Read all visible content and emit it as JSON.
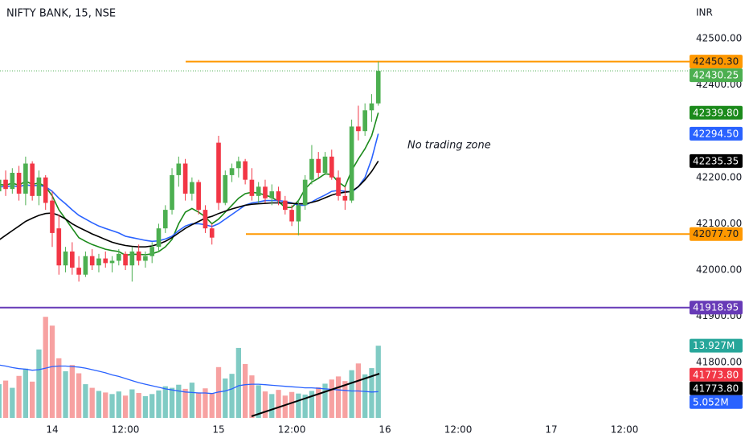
{
  "chart_data": {
    "type": "candlestick",
    "title": "NIFTY BANK, 15, NSE",
    "currency": "INR",
    "annotation": "No trading zone",
    "x": [
      -8,
      -7,
      -6,
      -5,
      -4,
      -3,
      -2,
      -1,
      0,
      1,
      2,
      3,
      4,
      5,
      6,
      7,
      8,
      9,
      10,
      11,
      12,
      13,
      14,
      15,
      16,
      17,
      18,
      19,
      20,
      21,
      22,
      23,
      24,
      25,
      26,
      27,
      28,
      29,
      30,
      31,
      32,
      33,
      34,
      35,
      36,
      37,
      38,
      39,
      40,
      41,
      42,
      43,
      44,
      45,
      46,
      47,
      48,
      49
    ],
    "open": [
      42170,
      42195,
      42175,
      42210,
      42165,
      42230,
      42160,
      42200,
      42150,
      42090,
      42010,
      42040,
      42005,
      41990,
      42030,
      42010,
      42025,
      42015,
      42020,
      42035,
      42010,
      42040,
      42020,
      42030,
      42050,
      42090,
      42130,
      42205,
      42230,
      42165,
      42190,
      42130,
      42090,
      42275,
      42145,
      42205,
      42220,
      42235,
      42195,
      42160,
      42180,
      42155,
      42170,
      42150,
      42130,
      42105,
      42140,
      42195,
      42240,
      42210,
      42245,
      42200,
      42160,
      42150,
      42310,
      42300,
      42345,
      42360
    ],
    "high": [
      42200,
      42215,
      42220,
      42225,
      42245,
      42235,
      42215,
      42205,
      42170,
      42120,
      42050,
      42060,
      42030,
      42040,
      42045,
      42035,
      42040,
      42030,
      42045,
      42040,
      42050,
      42055,
      42040,
      42060,
      42100,
      42140,
      42220,
      42245,
      42240,
      42200,
      42195,
      42140,
      42100,
      42290,
      42215,
      42230,
      42245,
      42240,
      42220,
      42190,
      42195,
      42185,
      42180,
      42160,
      42140,
      42150,
      42205,
      42270,
      42255,
      42255,
      42260,
      42215,
      42180,
      42325,
      42355,
      42360,
      42380,
      42450.3
    ],
    "low": [
      42130,
      42160,
      42165,
      42150,
      42140,
      42150,
      42140,
      42130,
      42050,
      41990,
      41995,
      41990,
      41975,
      41985,
      42000,
      41995,
      42005,
      41995,
      42010,
      42000,
      41975,
      42010,
      42005,
      42015,
      42040,
      42080,
      42120,
      42180,
      42150,
      42150,
      42120,
      42080,
      42055,
      42130,
      42140,
      42190,
      42200,
      42185,
      42150,
      42145,
      42145,
      42140,
      42140,
      42120,
      42095,
      42075,
      42130,
      42185,
      42200,
      42205,
      42195,
      42150,
      42130,
      42145,
      42280,
      42290,
      42320,
      42355
    ],
    "close": [
      42195,
      42175,
      42210,
      42165,
      42230,
      42160,
      42200,
      42145,
      42080,
      42010,
      42040,
      42005,
      41990,
      42030,
      42010,
      42025,
      42015,
      42020,
      42035,
      42010,
      42040,
      42020,
      42030,
      42050,
      42090,
      42130,
      42205,
      42230,
      42165,
      42190,
      42130,
      42090,
      42070,
      42145,
      42205,
      42220,
      42235,
      42195,
      42160,
      42180,
      42155,
      42170,
      42150,
      42130,
      42105,
      42140,
      42195,
      42240,
      42210,
      42245,
      42200,
      42160,
      42150,
      42310,
      42300,
      42345,
      42360,
      42430.25
    ],
    "last_price_label": "42430.25",
    "last_price_color": "#4caf50",
    "up_color": "#4caf50",
    "down_color": "#f23645",
    "xlim": [
      -7.85,
      95.77
    ],
    "xticks": [
      {
        "value": 0,
        "label": "14"
      },
      {
        "value": 11,
        "label": "12:00"
      },
      {
        "value": 25,
        "label": "15"
      },
      {
        "value": 36,
        "label": "12:00"
      },
      {
        "value": 50,
        "label": "16"
      },
      {
        "value": 61,
        "label": "12:00"
      },
      {
        "value": 75,
        "label": "17"
      },
      {
        "value": 86,
        "label": "12:00"
      }
    ],
    "ylim": [
      41671.9,
      42583.3
    ],
    "yticks": [
      {
        "value": 42500,
        "label": "42500.00"
      },
      {
        "value": 42400,
        "label": "42400.00"
      },
      {
        "value": 42200,
        "label": "42200.00"
      },
      {
        "value": 42100,
        "label": "42100.00"
      },
      {
        "value": 42000,
        "label": "42000.00"
      },
      {
        "value": 41900,
        "label": "41900.00"
      },
      {
        "value": 41800,
        "label": "41800.00"
      }
    ],
    "lines": [
      {
        "color": "#1b8a1b",
        "value_label": "42339.80",
        "values": [
          42185,
          42183,
          42188,
          42183,
          42192,
          42185,
          42188,
          42180,
          42160,
          42130,
          42110,
          42090,
          42070,
          42062,
          42055,
          42050,
          42045,
          42042,
          42040,
          42032,
          42034,
          42034,
          42033,
          42035,
          42040,
          42050,
          42066,
          42100,
          42125,
          42133,
          42125,
          42115,
          42100,
          42110,
          42125,
          42140,
          42155,
          42165,
          42168,
          42166,
          42162,
          42157,
          42148,
          42135,
          42135,
          42150,
          42175,
          42190,
          42198,
          42208,
          42206,
          42190,
          42180,
          42215,
          42240,
          42262,
          42290,
          42339.8
        ]
      },
      {
        "color": "#2962ff",
        "value_label": "42294.50",
        "values": [
          42180,
          42180,
          42182,
          42180,
          42184,
          42182,
          42183,
          42180,
          42170,
          42155,
          42143,
          42130,
          42118,
          42110,
          42102,
          42095,
          42090,
          42085,
          42080,
          42073,
          42070,
          42067,
          42064,
          42062,
          42063,
          42067,
          42073,
          42085,
          42095,
          42100,
          42100,
          42098,
          42094,
          42100,
          42110,
          42120,
          42130,
          42140,
          42145,
          42147,
          42150,
          42150,
          42150,
          42148,
          42145,
          42140,
          42140,
          42147,
          42155,
          42162,
          42170,
          42172,
          42170,
          42168,
          42180,
          42200,
          42240,
          42294.5
        ]
      },
      {
        "color": "#000000",
        "value_label": "42235.35",
        "values": [
          42065,
          42075,
          42085,
          42095,
          42105,
          42112,
          42118,
          42122,
          42123,
          42118,
          42110,
          42100,
          42092,
          42085,
          42078,
          42072,
          42066,
          42060,
          42056,
          42053,
          42051,
          42050,
          42050,
          42052,
          42056,
          42062,
          42070,
          42080,
          42090,
          42098,
          42105,
          42112,
          42116,
          42122,
          42127,
          42132,
          42136,
          42140,
          42142,
          42143,
          42144,
          42145,
          42145,
          42145,
          42144,
          42143,
          42143,
          42146,
          42150,
          42156,
          42162,
          42166,
          42168,
          42170,
          42180,
          42195,
          42213,
          42235.35
        ]
      }
    ],
    "volume": {
      "ylim": [
        0,
        20
      ],
      "up_color": "#80cbc4",
      "down_color": "#f7a1a1",
      "label_color": "#26a69a",
      "value_label": "13.927M",
      "values": [
        6.5,
        7.2,
        5.8,
        8.1,
        9.5,
        7.0,
        13.2,
        19.5,
        17.8,
        11.5,
        9.0,
        10.2,
        8.6,
        6.5,
        5.8,
        5.2,
        4.9,
        4.6,
        5.1,
        4.3,
        5.5,
        4.8,
        4.2,
        4.6,
        5.3,
        6.1,
        5.8,
        6.4,
        5.6,
        6.8,
        4.9,
        5.7,
        4.8,
        9.8,
        7.6,
        8.5,
        13.5,
        10.4,
        8.2,
        6.3,
        5.1,
        4.6,
        5.4,
        4.3,
        5.0,
        4.7,
        4.5,
        5.2,
        5.9,
        6.6,
        7.4,
        8.0,
        7.1,
        9.2,
        10.5,
        8.4,
        9.6,
        13.927
      ],
      "ma": {
        "color": "#2962ff",
        "value_label": "5.052M",
        "values": [
          10.2,
          10.0,
          9.7,
          9.5,
          9.4,
          9.2,
          9.3,
          9.6,
          9.9,
          10.0,
          10.0,
          9.9,
          9.8,
          9.6,
          9.3,
          9.0,
          8.7,
          8.3,
          8.0,
          7.6,
          7.2,
          6.8,
          6.5,
          6.2,
          5.9,
          5.6,
          5.4,
          5.2,
          5.0,
          4.9,
          4.8,
          4.8,
          4.7,
          5.0,
          5.2,
          5.6,
          6.2,
          6.4,
          6.5,
          6.5,
          6.4,
          6.3,
          6.2,
          6.1,
          6.0,
          5.9,
          5.8,
          5.8,
          5.7,
          5.6,
          5.5,
          5.4,
          5.3,
          5.2,
          5.2,
          5.1,
          5.0,
          5.052
        ]
      }
    },
    "levels": [
      {
        "value": 42450.3,
        "label": "42450.30",
        "color": "#ff9800"
      },
      {
        "value": 42077.7,
        "label": "42077.70",
        "color": "#ff9800"
      },
      {
        "value": 41918.95,
        "label": "41918.95",
        "color": "#673ab7"
      }
    ],
    "price_labels": [
      {
        "value": 41773.8,
        "label": "41773.80",
        "color": "#f23645"
      },
      {
        "value": 41773.8,
        "label": "41773.80",
        "color": "#000000"
      }
    ]
  }
}
